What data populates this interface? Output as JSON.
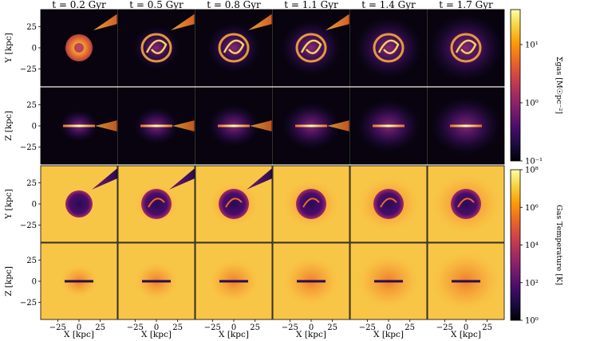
{
  "chart_data": {
    "type": "heatmap",
    "columns": [
      "t = 0.2 Gyr",
      "t = 0.5 Gyr",
      "t = 0.8 Gyr",
      "t = 1.1 Gyr",
      "t = 1.4 Gyr",
      "t = 1.7 Gyr"
    ],
    "rows": [
      {
        "ylabel": "Y [kpc]",
        "quantity": "surface-density",
        "projection": "face-on"
      },
      {
        "ylabel": "Z [kpc]",
        "quantity": "surface-density",
        "projection": "edge-on"
      },
      {
        "ylabel": "Y [kpc]",
        "quantity": "temperature",
        "projection": "face-on"
      },
      {
        "ylabel": "Z [kpc]",
        "quantity": "temperature",
        "projection": "edge-on"
      }
    ],
    "xlabel": "X [kpc]",
    "xticks": [
      "−25",
      "0",
      "25"
    ],
    "yticks": [
      "25",
      "0",
      "−25"
    ],
    "axis_range": [
      -45,
      45
    ],
    "colorbars": [
      {
        "label": "Σgas [M☉pc⁻²]",
        "scale": "log",
        "range": [
          0.1,
          40
        ],
        "tick_labels": [
          "10¹",
          "10⁰",
          "10⁻¹"
        ],
        "tick_values": [
          10,
          1,
          0.1
        ],
        "colormap": "inferno"
      },
      {
        "label": "Gas Temperature [K]",
        "scale": "log",
        "range": [
          1,
          100000000
        ],
        "tick_labels": [
          "10⁸",
          "10⁶",
          "10⁴",
          "10²",
          "10⁰"
        ],
        "tick_values": [
          100000000,
          1000000,
          10000,
          100,
          1
        ],
        "colormap": "inferno"
      }
    ]
  },
  "colors": {
    "inferno": [
      "#000004",
      "#1b0c41",
      "#4a0c6b",
      "#781c6d",
      "#a52c60",
      "#cf4446",
      "#ed6925",
      "#fb9b06",
      "#f7d13d",
      "#fcffa4"
    ],
    "density_background": "#08030f",
    "temperature_background": "#f8c646"
  }
}
